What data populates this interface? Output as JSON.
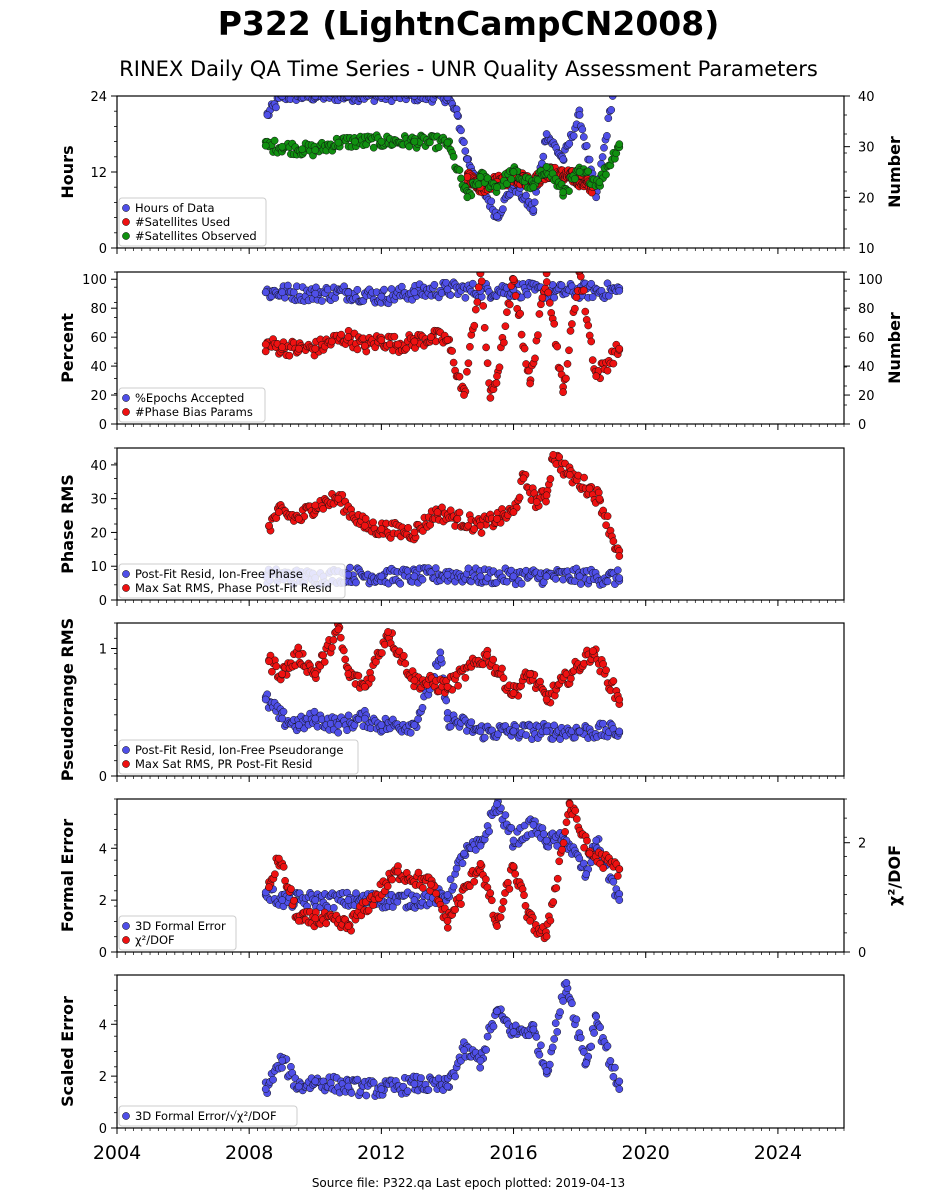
{
  "title": "P322 (LightnCampCN2008)",
  "subtitle": "RINEX Daily QA Time Series - UNR Quality Assessment Parameters",
  "footer": "Source file: P322.qa Last epoch plotted: 2019-04-13",
  "colors": {
    "blue": "#4f4fe8",
    "red": "#ee1111",
    "green": "#109010",
    "edge": "#111111"
  },
  "x_axis": {
    "range": [
      2004,
      2026
    ],
    "ticks": [
      2004,
      2008,
      2012,
      2016,
      2020,
      2024
    ]
  },
  "chart_data": [
    {
      "type": "scatter",
      "ylabel": "Hours",
      "ylim": [
        0,
        24
      ],
      "yticks": [
        0,
        12,
        24
      ],
      "y2label": "Number",
      "y2lim": [
        10,
        40
      ],
      "y2ticks": [
        10,
        20,
        30,
        40
      ],
      "legend": "lower-left",
      "grid": false,
      "series": [
        {
          "name": "Hours of Data",
          "color": "blue",
          "axis": "left",
          "x": [
            2008.55,
            2009.0,
            2010.0,
            2011.0,
            2012.0,
            2013.0,
            2014.0,
            2014.3,
            2014.6,
            2015.0,
            2015.5,
            2016.0,
            2016.6,
            2017.0,
            2017.5,
            2018.0,
            2018.5,
            2019.0
          ],
          "y": [
            21,
            24,
            24,
            24,
            24,
            24,
            23.8,
            21,
            14,
            10,
            5,
            10,
            6,
            18,
            14,
            21,
            8,
            24
          ]
        },
        {
          "name": "#Satellites Used",
          "color": "red",
          "axis": "right",
          "x": [
            2014.6,
            2015.0,
            2015.5,
            2016.0,
            2016.6,
            2017.0,
            2017.8,
            2018.4
          ],
          "y": [
            24,
            22,
            23,
            24,
            23,
            25,
            24,
            22
          ]
        },
        {
          "name": "#Satellites Observed",
          "color": "green",
          "axis": "right",
          "x": [
            2008.5,
            2009.0,
            2009.6,
            2010.0,
            2010.7,
            2011.2,
            2012.0,
            2013.0,
            2014.0,
            2014.6,
            2015.0,
            2015.5,
            2016.0,
            2016.6,
            2017.0,
            2017.5,
            2018.0,
            2018.6,
            2019.2
          ],
          "y": [
            30.2,
            30.0,
            29.5,
            29.3,
            30.8,
            31.0,
            31.0,
            31.0,
            30.8,
            20,
            24,
            22,
            25,
            22,
            26,
            21,
            25,
            23,
            30.5
          ]
        }
      ]
    },
    {
      "type": "scatter",
      "ylabel": "Percent",
      "ylim": [
        0,
        105
      ],
      "yticks": [
        0,
        20,
        40,
        60,
        80,
        100
      ],
      "y2label": "Number",
      "y2ticks": [
        0,
        20,
        40,
        60,
        80,
        100
      ],
      "legend": "lower-left",
      "grid": false,
      "series": [
        {
          "name": "%Epochs Accepted",
          "color": "blue",
          "x": [
            2008.5,
            2009.0,
            2010.0,
            2011.0,
            2012.0,
            2013.0,
            2014.0,
            2015.0,
            2016.0,
            2017.0,
            2018.0,
            2019.2
          ],
          "y": [
            91,
            91,
            90,
            91,
            88,
            91,
            93,
            92,
            93,
            91,
            92,
            92
          ]
        },
        {
          "name": "#Phase Bias Params",
          "color": "red",
          "x": [
            2008.5,
            2009.0,
            2009.5,
            2010.0,
            2010.5,
            2011.0,
            2011.5,
            2012.0,
            2012.5,
            2013.0,
            2013.5,
            2014.0,
            2014.5,
            2015.0,
            2015.3,
            2015.5,
            2016.0,
            2016.5,
            2017.0,
            2017.5,
            2018.0,
            2018.5,
            2019.2
          ],
          "y": [
            55,
            53,
            52,
            52,
            57,
            60,
            54,
            58,
            55,
            57,
            60,
            58,
            20,
            104,
            18,
            33,
            100,
            28,
            104,
            22,
            106,
            33,
            52
          ]
        }
      ]
    },
    {
      "type": "scatter",
      "ylabel": "Phase RMS",
      "ylim": [
        0,
        45
      ],
      "yticks": [
        0,
        10,
        20,
        30,
        40
      ],
      "legend": "lower-left",
      "grid": false,
      "series": [
        {
          "name": "Post-Fit Resid, Ion-Free Phase",
          "color": "blue",
          "x": [
            2008.5,
            2009.0,
            2010.0,
            2011.0,
            2012.0,
            2013.0,
            2014.0,
            2015.0,
            2016.0,
            2017.0,
            2018.0,
            2019.2
          ],
          "y": [
            7,
            7,
            6.5,
            7.5,
            7,
            7,
            7.5,
            7,
            7,
            7,
            7,
            6.5
          ]
        },
        {
          "name": "Max Sat RMS, Phase Post-Fit Resid",
          "color": "red",
          "x": [
            2008.6,
            2008.9,
            2009.5,
            2010.0,
            2010.7,
            2011.5,
            2012.0,
            2013.0,
            2013.7,
            2014.3,
            2015.0,
            2015.5,
            2016.0,
            2016.3,
            2016.7,
            2017.0,
            2017.2,
            2017.7,
            2018.3,
            2018.6,
            2019.2
          ],
          "y": [
            22,
            26,
            24,
            28,
            30,
            22,
            21,
            20,
            26,
            24,
            22,
            24,
            26,
            36,
            29,
            31,
            43,
            37,
            33,
            30,
            13
          ]
        }
      ]
    },
    {
      "type": "scatter",
      "ylabel": "Pseudorange RMS",
      "ylim": [
        0,
        1.2
      ],
      "yticks": [
        0,
        1
      ],
      "legend": "lower-left",
      "grid": false,
      "series": [
        {
          "name": "Post-Fit Resid, Ion-Free Pseudorange",
          "color": "blue",
          "x": [
            2008.5,
            2009.0,
            2009.5,
            2010.0,
            2010.7,
            2011.5,
            2012.0,
            2013.0,
            2013.8,
            2014.0,
            2015.0,
            2016.0,
            2017.0,
            2018.0,
            2019.2
          ],
          "y": [
            0.6,
            0.45,
            0.4,
            0.45,
            0.4,
            0.45,
            0.4,
            0.4,
            0.92,
            0.45,
            0.35,
            0.35,
            0.35,
            0.35,
            0.35
          ]
        },
        {
          "name": "Max Sat RMS, PR Post-Fit Resid",
          "color": "red",
          "x": [
            2008.6,
            2009.0,
            2009.5,
            2010.0,
            2010.7,
            2011.0,
            2011.5,
            2012.2,
            2013.0,
            2014.0,
            2015.2,
            2016.0,
            2016.5,
            2017.0,
            2018.4,
            2019.2
          ],
          "y": [
            0.9,
            0.8,
            0.95,
            0.8,
            1.15,
            0.8,
            0.7,
            1.13,
            0.75,
            0.7,
            0.95,
            0.65,
            0.8,
            0.6,
            0.98,
            0.6
          ]
        }
      ]
    },
    {
      "type": "scatter",
      "ylabel": "Formal Error",
      "ylim": [
        0,
        5.9
      ],
      "yticks": [
        0,
        2,
        4
      ],
      "y2label": "χ²/DOF",
      "y2ticks": [
        0,
        2
      ],
      "legend": "lower-left",
      "grid": false,
      "series": [
        {
          "name": "3D Formal Error",
          "color": "blue",
          "x": [
            2008.5,
            2009.0,
            2010.0,
            2011.0,
            2012.0,
            2013.0,
            2014.0,
            2014.5,
            2015.0,
            2015.5,
            2016.0,
            2016.6,
            2017.0,
            2017.6,
            2018.2,
            2018.5,
            2019.2
          ],
          "y": [
            2.3,
            2.0,
            2.0,
            2.0,
            2.0,
            2.0,
            2.2,
            3.8,
            4.1,
            5.7,
            4.3,
            4.9,
            4.3,
            4.3,
            3.0,
            4.3,
            2.0
          ]
        },
        {
          "name": "χ²/DOF",
          "color": "red",
          "x": [
            2008.6,
            2008.9,
            2009.5,
            2010.0,
            2011.0,
            2012.5,
            2013.5,
            2014.0,
            2015.0,
            2015.5,
            2016.0,
            2016.5,
            2017.0,
            2017.7,
            2018.3,
            2019.2
          ],
          "y": [
            2.5,
            3.6,
            1.2,
            1.3,
            1.0,
            3.1,
            2.6,
            1.2,
            3.4,
            1.0,
            3.3,
            1.2,
            0.6,
            5.7,
            3.8,
            3.2
          ]
        }
      ]
    },
    {
      "type": "scatter",
      "ylabel": "Scaled Error",
      "ylim": [
        0,
        5.9
      ],
      "yticks": [
        0,
        2,
        4
      ],
      "legend": "lower-left",
      "grid": false,
      "series": [
        {
          "name": "3D Formal Error/√χ²/DOF",
          "color": "blue",
          "x": [
            2008.5,
            2009.0,
            2009.5,
            2010.0,
            2011.0,
            2012.0,
            2013.0,
            2014.0,
            2014.5,
            2015.0,
            2015.5,
            2016.0,
            2016.6,
            2017.0,
            2017.6,
            2018.2,
            2018.5,
            2019.2
          ],
          "y": [
            1.5,
            2.6,
            1.6,
            1.8,
            1.6,
            1.5,
            1.7,
            1.6,
            3.0,
            2.6,
            4.5,
            3.7,
            3.8,
            2.2,
            5.6,
            2.5,
            4.3,
            1.5
          ]
        }
      ]
    }
  ]
}
